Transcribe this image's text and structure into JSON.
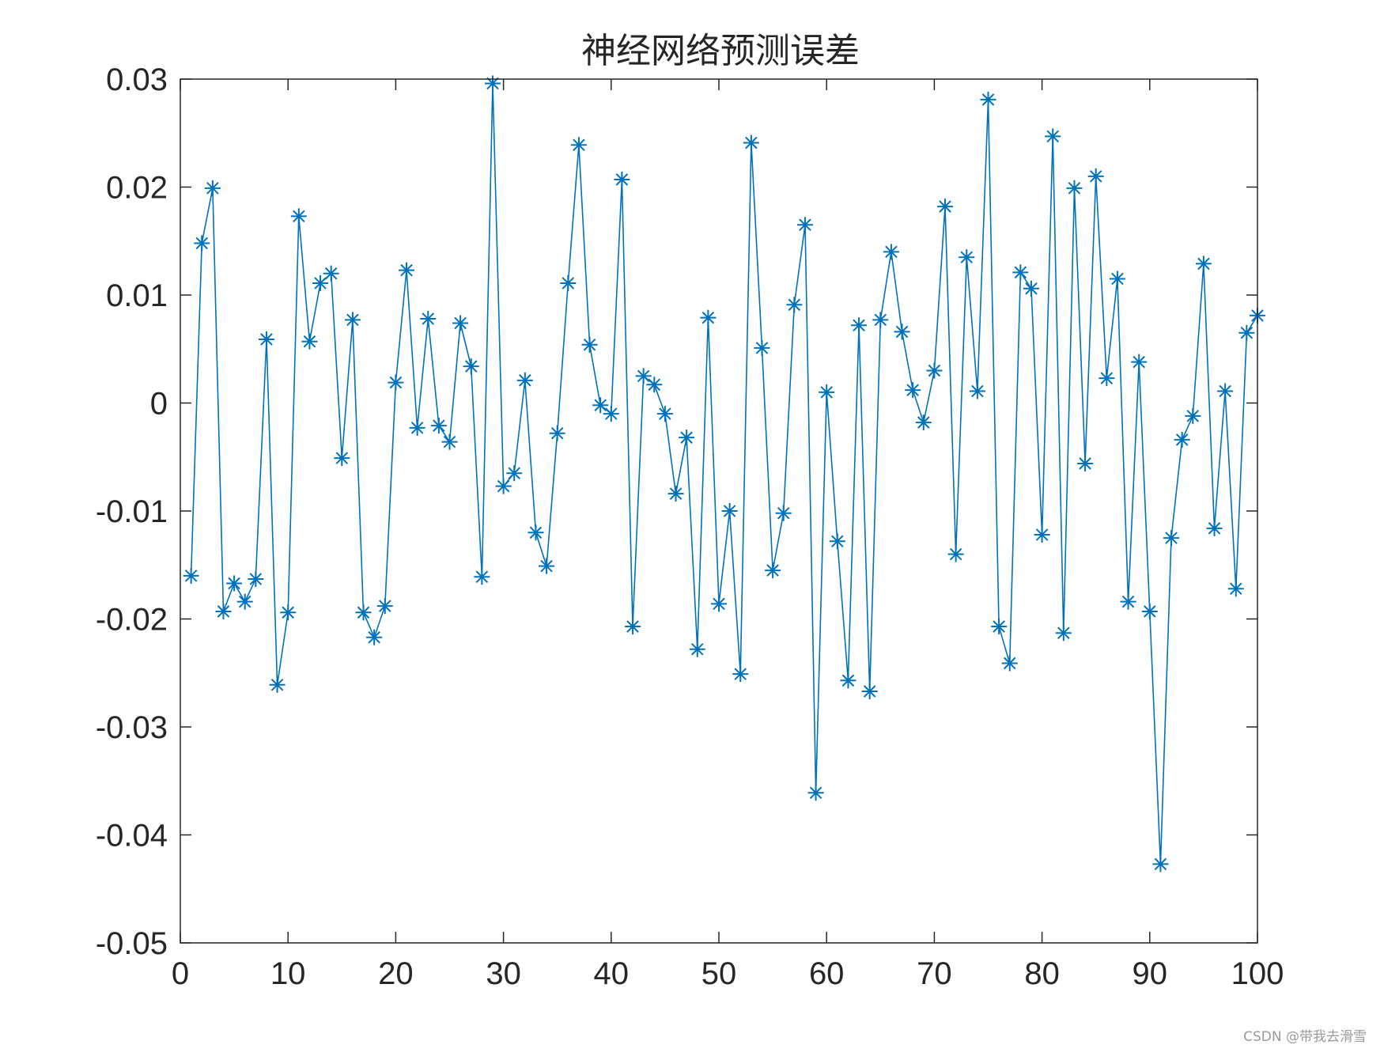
{
  "chart_data": {
    "type": "line",
    "title": "神经网络预测误差",
    "xlabel": "",
    "ylabel": "",
    "xlim": [
      0,
      100
    ],
    "ylim": [
      -0.05,
      0.03
    ],
    "x_ticks": [
      0,
      10,
      20,
      30,
      40,
      50,
      60,
      70,
      80,
      90,
      100
    ],
    "x_tick_labels": [
      "0",
      "10",
      "20",
      "30",
      "40",
      "50",
      "60",
      "70",
      "80",
      "90",
      "100"
    ],
    "y_ticks": [
      -0.05,
      -0.04,
      -0.03,
      -0.02,
      -0.01,
      0,
      0.01,
      0.02,
      0.03
    ],
    "y_tick_labels": [
      "-0.05",
      "-0.04",
      "-0.03",
      "-0.02",
      "-0.01",
      "0",
      "0.01",
      "0.02",
      "0.03"
    ],
    "grid": false,
    "marker": "asterisk",
    "series": [
      {
        "color": "#0072BD",
        "x": [
          1,
          2,
          3,
          4,
          5,
          6,
          7,
          8,
          9,
          10,
          11,
          12,
          13,
          14,
          15,
          16,
          17,
          18,
          19,
          20,
          21,
          22,
          23,
          24,
          25,
          26,
          27,
          28,
          29,
          30,
          31,
          32,
          33,
          34,
          35,
          36,
          37,
          38,
          39,
          40,
          41,
          42,
          43,
          44,
          45,
          46,
          47,
          48,
          49,
          50,
          51,
          52,
          53,
          54,
          55,
          56,
          57,
          58,
          59,
          60,
          61,
          62,
          63,
          64,
          65,
          66,
          67,
          68,
          69,
          70,
          71,
          72,
          73,
          74,
          75,
          76,
          77,
          78,
          79,
          80,
          81,
          82,
          83,
          84,
          85,
          86,
          87,
          88,
          89,
          90,
          91,
          92,
          93,
          94,
          95,
          96,
          97,
          98,
          99,
          100
        ],
        "y": [
          -0.016,
          0.0148,
          0.0199,
          -0.0193,
          -0.0167,
          -0.0184,
          -0.0163,
          0.0059,
          -0.0261,
          -0.0194,
          0.0173,
          0.0057,
          0.0111,
          0.012,
          -0.0051,
          0.0077,
          -0.0194,
          -0.0217,
          -0.0188,
          0.0019,
          0.0123,
          -0.0023,
          0.0078,
          -0.0021,
          -0.0036,
          0.0074,
          0.0034,
          -0.0161,
          0.0296,
          -0.0077,
          -0.0065,
          0.0021,
          -0.012,
          -0.0151,
          -0.0028,
          0.0111,
          0.0239,
          0.0054,
          -0.0002,
          -0.001,
          0.0207,
          -0.0207,
          0.0025,
          0.0017,
          -0.001,
          -0.0084,
          -0.0032,
          -0.0228,
          0.0079,
          -0.0186,
          -0.01,
          -0.0251,
          0.0241,
          0.0051,
          -0.0155,
          -0.0102,
          0.0091,
          0.0165,
          -0.0361,
          0.001,
          -0.0128,
          -0.0257,
          0.0072,
          -0.0267,
          0.0077,
          0.014,
          0.0066,
          0.0012,
          -0.0018,
          0.003,
          0.0182,
          -0.014,
          0.0135,
          0.0011,
          0.0281,
          -0.0207,
          -0.0241,
          0.0121,
          0.0106,
          -0.0122,
          0.0247,
          -0.0213,
          0.0199,
          -0.0056,
          0.021,
          0.0023,
          0.0115,
          -0.0184,
          0.0038,
          -0.0193,
          -0.0427,
          -0.0125,
          -0.0034,
          -0.0012,
          0.0129,
          -0.0116,
          0.0011,
          -0.0172,
          0.0065,
          0.0081
        ]
      }
    ]
  },
  "watermark": "CSDN @带我去滑雪"
}
